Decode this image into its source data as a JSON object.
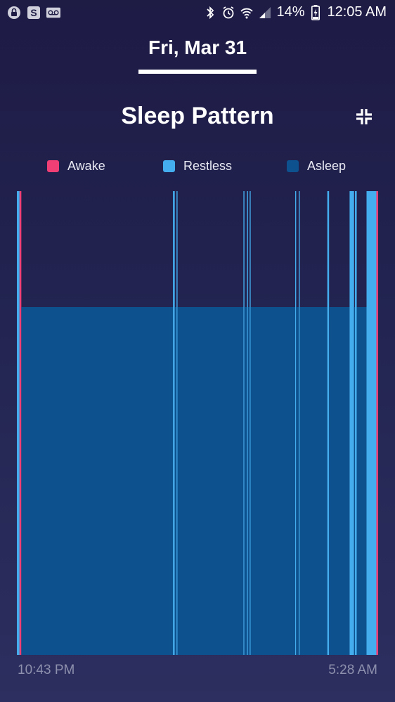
{
  "status_bar": {
    "battery": "14%",
    "time": "12:05 AM",
    "left_icons": [
      "lock-notification-icon",
      "s-app-icon",
      "voicemail-icon"
    ],
    "right_icons": [
      "bluetooth-icon",
      "alarm-icon",
      "wifi-icon",
      "signal-icon",
      "battery-charging-icon"
    ]
  },
  "date_tab": {
    "label": "Fri, Mar 31"
  },
  "header": {
    "title": "Sleep Pattern",
    "collapse_icon": "collapse-icon"
  },
  "colors": {
    "awake": "#ef3f74",
    "restless": "#44adee",
    "asleep": "#0d528f"
  },
  "chart_data": {
    "type": "timeline",
    "title": "Sleep Pattern",
    "legend": [
      {
        "key": "awake",
        "label": "Awake"
      },
      {
        "key": "restless",
        "label": "Restless"
      },
      {
        "key": "asleep",
        "label": "Asleep"
      }
    ],
    "legend_position": "top",
    "x_start_label": "10:43 PM",
    "x_end_label": "5:28 AM",
    "x_unit": "minutes after start",
    "x_range": [
      0,
      405
    ],
    "level_height": {
      "awake": 1.0,
      "restless": 1.0,
      "asleep": 0.75
    },
    "segments": [
      {
        "state": "restless",
        "start": 0,
        "end": 3
      },
      {
        "state": "awake",
        "start": 3,
        "end": 5
      },
      {
        "state": "asleep",
        "start": 5,
        "end": 175
      },
      {
        "state": "restless",
        "start": 175,
        "end": 177
      },
      {
        "state": "asleep",
        "start": 177,
        "end": 179
      },
      {
        "state": "restless",
        "start": 179,
        "end": 180
      },
      {
        "state": "asleep",
        "start": 180,
        "end": 254
      },
      {
        "state": "restless",
        "start": 254,
        "end": 255
      },
      {
        "state": "asleep",
        "start": 255,
        "end": 258
      },
      {
        "state": "restless",
        "start": 258,
        "end": 259
      },
      {
        "state": "asleep",
        "start": 259,
        "end": 261
      },
      {
        "state": "restless",
        "start": 261,
        "end": 262
      },
      {
        "state": "asleep",
        "start": 262,
        "end": 312
      },
      {
        "state": "restless",
        "start": 312,
        "end": 313
      },
      {
        "state": "asleep",
        "start": 313,
        "end": 316
      },
      {
        "state": "restless",
        "start": 316,
        "end": 317
      },
      {
        "state": "asleep",
        "start": 317,
        "end": 348
      },
      {
        "state": "restless",
        "start": 348,
        "end": 350
      },
      {
        "state": "asleep",
        "start": 350,
        "end": 373
      },
      {
        "state": "restless",
        "start": 373,
        "end": 378
      },
      {
        "state": "asleep",
        "start": 378,
        "end": 379
      },
      {
        "state": "restless",
        "start": 379,
        "end": 381
      },
      {
        "state": "asleep",
        "start": 381,
        "end": 392
      },
      {
        "state": "restless",
        "start": 392,
        "end": 403
      },
      {
        "state": "awake",
        "start": 403,
        "end": 405
      }
    ]
  }
}
